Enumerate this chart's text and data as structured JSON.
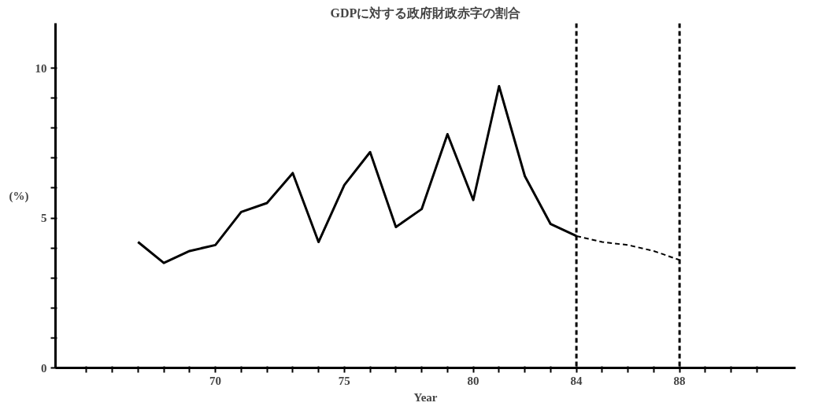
{
  "chart_data": {
    "type": "line",
    "title": "GDPに対する政府財政赤字の割合",
    "xlabel": "Year",
    "ylabel": "(%)",
    "xlim": [
      63.8,
      92.5
    ],
    "ylim": [
      0,
      11.5
    ],
    "xticks": [
      {
        "value": 65,
        "label": null
      },
      {
        "value": 66,
        "label": null
      },
      {
        "value": 67,
        "label": null
      },
      {
        "value": 68,
        "label": null
      },
      {
        "value": 69,
        "label": null
      },
      70,
      {
        "value": 71,
        "label": null
      },
      {
        "value": 72,
        "label": null
      },
      {
        "value": 73,
        "label": null
      },
      {
        "value": 74,
        "label": null
      },
      75,
      {
        "value": 76,
        "label": null
      },
      {
        "value": 77,
        "label": null
      },
      {
        "value": 78,
        "label": null
      },
      {
        "value": 79,
        "label": null
      },
      80,
      {
        "value": 81,
        "label": null
      },
      {
        "value": 82,
        "label": null
      },
      {
        "value": 83,
        "label": null
      },
      84,
      {
        "value": 85,
        "label": null
      },
      {
        "value": 86,
        "label": null
      },
      {
        "value": 87,
        "label": null
      },
      88,
      {
        "value": 89,
        "label": null
      },
      {
        "value": 90,
        "label": null
      },
      {
        "value": 91,
        "label": null
      }
    ],
    "yticks": [
      0,
      {
        "value": 1,
        "label": null
      },
      {
        "value": 2,
        "label": null
      },
      {
        "value": 3,
        "label": null
      },
      {
        "value": 4,
        "label": null
      },
      5,
      {
        "value": 6,
        "label": null
      },
      {
        "value": 7,
        "label": null
      },
      {
        "value": 8,
        "label": null
      },
      {
        "value": 9,
        "label": null
      },
      10
    ],
    "series": [
      {
        "color": "#000000",
        "line_style": "solid",
        "x": [
          67,
          68,
          69,
          70,
          71,
          72,
          73,
          74,
          75,
          76,
          77,
          78,
          79,
          80,
          81,
          82,
          83,
          84
        ],
        "values": [
          4.2,
          3.5,
          3.9,
          4.1,
          5.2,
          5.5,
          6.5,
          4.2,
          6.1,
          7.2,
          4.7,
          5.3,
          7.8,
          5.6,
          9.4,
          6.4,
          4.8,
          4.4
        ]
      },
      {
        "color": "#000000",
        "line_style": "dashed",
        "x": [
          84,
          85,
          86,
          87,
          88
        ],
        "values": [
          4.4,
          4.2,
          4.1,
          3.9,
          3.6
        ]
      }
    ],
    "ref_lines": [
      {
        "axis": "x",
        "value": 84,
        "label": null,
        "line_style": "dashed",
        "color": "#000000"
      },
      {
        "axis": "x",
        "value": 88,
        "label": null,
        "line_style": "dashed",
        "color": "#000000"
      }
    ],
    "grid": false,
    "marker": "none"
  }
}
